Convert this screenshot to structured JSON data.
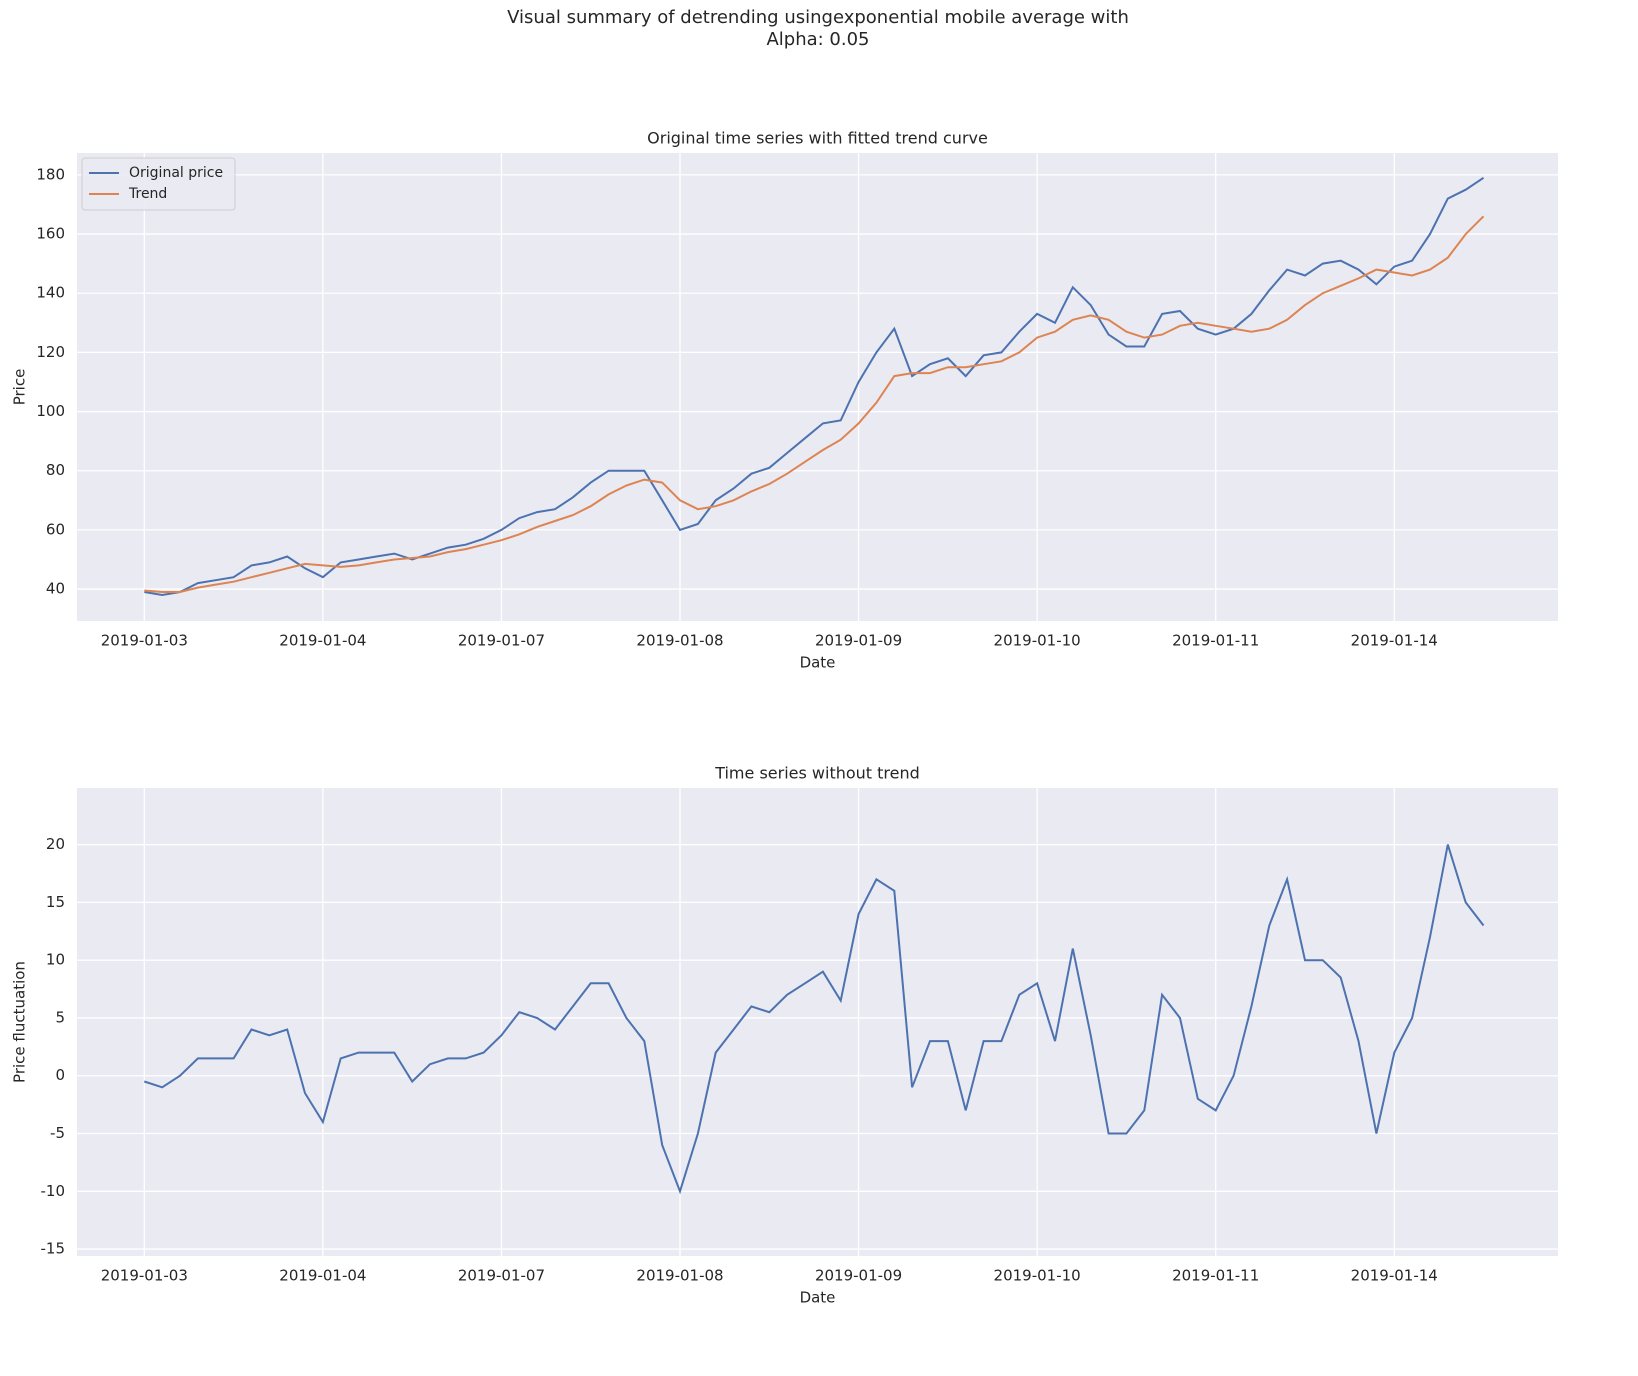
{
  "title_lines": [
    "Visual summary of detrending usingexponential mobile average with",
    "Alpha: 0.05"
  ],
  "chart_data": [
    {
      "type": "line",
      "title": "Original time series with fitted trend curve",
      "xlabel": "Date",
      "ylabel": "Price",
      "x": [
        0,
        10,
        20,
        30,
        40,
        50,
        60,
        70,
        80,
        90,
        100,
        110,
        120,
        130,
        140,
        150,
        160,
        170,
        180,
        190,
        200,
        210,
        220,
        230,
        240,
        250,
        260,
        270,
        280,
        290,
        300,
        310,
        320,
        330,
        340,
        350,
        360,
        370,
        380,
        390,
        400,
        410,
        420,
        430,
        440,
        450,
        460,
        470,
        480,
        490,
        500,
        510,
        520,
        530,
        540,
        550,
        560,
        570,
        580,
        590,
        600,
        610,
        620,
        630,
        640,
        650,
        660,
        670,
        680,
        690,
        700,
        710,
        720,
        730,
        740,
        750
      ],
      "series": [
        {
          "name": "Original price",
          "color": "#4c72b0",
          "values": [
            39,
            38,
            39,
            42,
            43,
            44,
            48,
            49,
            51,
            47,
            44,
            49,
            50,
            51,
            52,
            50,
            52,
            54,
            55,
            57,
            60,
            64,
            66,
            67,
            71,
            76,
            80,
            80,
            80,
            70,
            60,
            62,
            70,
            74,
            79,
            81,
            86,
            91,
            96,
            97,
            110,
            120,
            128,
            112,
            116,
            118,
            112,
            119,
            120,
            127,
            133,
            130,
            142,
            136,
            126,
            122,
            122,
            133,
            134,
            128,
            126,
            128,
            133,
            141,
            148,
            146,
            150,
            151,
            148,
            143,
            149,
            151,
            160,
            172,
            175,
            179
          ]
        },
        {
          "name": "Trend",
          "color": "#dd8452",
          "values": [
            39.5,
            39,
            39,
            40.5,
            41.5,
            42.5,
            44,
            45.5,
            47,
            48.5,
            48,
            47.5,
            48,
            49,
            50,
            50.5,
            51,
            52.5,
            53.5,
            55,
            56.5,
            58.5,
            61,
            63,
            65,
            68,
            72,
            75,
            77,
            76,
            70,
            67,
            68,
            70,
            73,
            75.5,
            79,
            83,
            87,
            90.5,
            96,
            103,
            112,
            113,
            113,
            115,
            115,
            116,
            117,
            120,
            125,
            127,
            131,
            132.5,
            131,
            127,
            125,
            126,
            129,
            130,
            129,
            128,
            127,
            128,
            131,
            136,
            140,
            142.5,
            145,
            148,
            147,
            146,
            148,
            152,
            160,
            166
          ]
        }
      ],
      "xlim": [
        -37.7,
        791.7
      ],
      "xticks": [
        {
          "value": 0,
          "label": "2019-01-03"
        },
        {
          "value": 100,
          "label": "2019-01-04"
        },
        {
          "value": 200,
          "label": "2019-01-07"
        },
        {
          "value": 300,
          "label": "2019-01-08"
        },
        {
          "value": 400,
          "label": "2019-01-09"
        },
        {
          "value": 500,
          "label": "2019-01-10"
        },
        {
          "value": 600,
          "label": "2019-01-11"
        },
        {
          "value": 700,
          "label": "2019-01-14"
        }
      ],
      "ylim": [
        29.2,
        187.4
      ],
      "yticks": [
        40,
        60,
        80,
        100,
        120,
        140,
        160,
        180
      ],
      "grid": true,
      "legend": "upper left"
    },
    {
      "type": "line",
      "title": "Time series without trend",
      "xlabel": "Date",
      "ylabel": "Price fluctuation",
      "x": [
        0,
        10,
        20,
        30,
        40,
        50,
        60,
        70,
        80,
        90,
        100,
        110,
        120,
        130,
        140,
        150,
        160,
        170,
        180,
        190,
        200,
        210,
        220,
        230,
        240,
        250,
        260,
        270,
        280,
        290,
        300,
        310,
        320,
        330,
        340,
        350,
        360,
        370,
        380,
        390,
        400,
        410,
        420,
        430,
        440,
        450,
        460,
        470,
        480,
        490,
        500,
        510,
        520,
        530,
        540,
        550,
        560,
        570,
        580,
        590,
        600,
        610,
        620,
        630,
        640,
        650,
        660,
        670,
        680,
        690,
        700,
        710,
        720,
        730,
        740,
        750
      ],
      "series": [
        {
          "color": "#4c72b0",
          "values": [
            -0.5,
            -1,
            0,
            1.5,
            1.5,
            1.5,
            4,
            3.5,
            4,
            -1.5,
            -4,
            1.5,
            2,
            2,
            2,
            -0.5,
            1,
            1.5,
            1.5,
            2,
            3.5,
            5.5,
            5,
            4,
            6,
            8,
            8,
            5,
            3,
            -6,
            -10,
            -5,
            2,
            4,
            6,
            5.5,
            7,
            8,
            9,
            6.5,
            14,
            17,
            16,
            -1,
            3,
            3,
            -3,
            3,
            3,
            7,
            8,
            3,
            11,
            3.5,
            -5,
            -5,
            -3,
            7,
            5,
            -2,
            -3,
            0,
            6,
            13,
            17,
            10,
            10,
            8.5,
            3,
            -5,
            2,
            5,
            12,
            20,
            15,
            13
          ]
        }
      ],
      "xlim": [
        -37.7,
        791.7
      ],
      "xticks": [
        {
          "value": 0,
          "label": "2019-01-03"
        },
        {
          "value": 100,
          "label": "2019-01-04"
        },
        {
          "value": 200,
          "label": "2019-01-07"
        },
        {
          "value": 300,
          "label": "2019-01-08"
        },
        {
          "value": 400,
          "label": "2019-01-09"
        },
        {
          "value": 500,
          "label": "2019-01-10"
        },
        {
          "value": 600,
          "label": "2019-01-11"
        },
        {
          "value": 700,
          "label": "2019-01-14"
        }
      ],
      "ylim": [
        -15.6,
        24.9
      ],
      "yticks": [
        -15,
        -10,
        -5,
        0,
        5,
        10,
        15,
        20
      ],
      "grid": true
    }
  ]
}
